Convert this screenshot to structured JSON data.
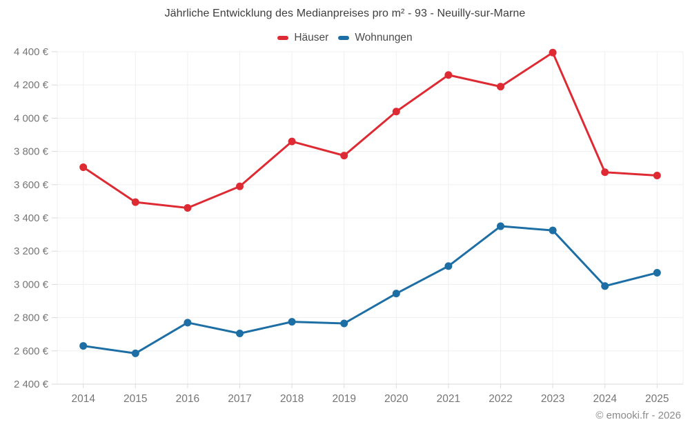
{
  "header": {
    "title": "Jährliche Entwicklung des Medianpreises pro m² - 93 - Neuilly-sur-Marne"
  },
  "legend": {
    "items": [
      {
        "label": "Häuser",
        "color": "#dd2a33"
      },
      {
        "label": "Wohnungen",
        "color": "#1c6ea4"
      }
    ]
  },
  "footer": {
    "credit": "© emooki.fr - 2026"
  },
  "chart_data": {
    "type": "line",
    "title": "Jährliche Entwicklung des Medianpreises pro m² - 93 - Neuilly-sur-Marne",
    "x": [
      2014,
      2015,
      2016,
      2017,
      2018,
      2019,
      2020,
      2021,
      2022,
      2023,
      2024,
      2025
    ],
    "series": [
      {
        "name": "Häuser",
        "color": "#dd2a33",
        "values": [
          3705,
          3495,
          3460,
          3590,
          3860,
          3775,
          4040,
          4260,
          4190,
          4395,
          3675,
          3655
        ]
      },
      {
        "name": "Wohnungen",
        "color": "#1c6ea4",
        "values": [
          2630,
          2585,
          2770,
          2705,
          2775,
          2765,
          2945,
          3110,
          3350,
          3325,
          2990,
          3070
        ]
      }
    ],
    "xlabel": "",
    "ylabel": "",
    "ylim": [
      2400,
      4400
    ],
    "y_ticks": [
      2400,
      2600,
      2800,
      3000,
      3200,
      3400,
      3600,
      3800,
      4000,
      4200,
      4400
    ],
    "y_tick_suffix": " €",
    "grid": true,
    "legend_position": "top"
  }
}
